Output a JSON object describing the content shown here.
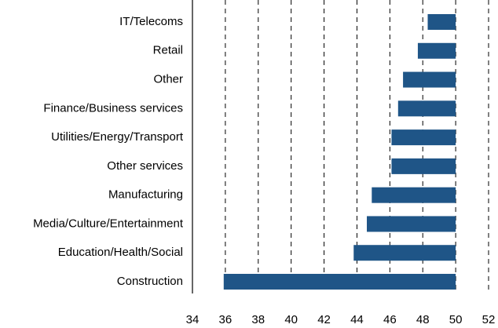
{
  "chart_data": {
    "type": "bar",
    "orientation": "horizontal",
    "categories": [
      "IT/Telecoms",
      "Retail",
      "Other",
      "Finance/Business services",
      "Utilities/Energy/Transport",
      "Other services",
      "Manufacturing",
      "Media/Culture/Entertainment",
      "Education/Health/Social",
      "Construction"
    ],
    "values": [
      48.3,
      47.7,
      46.8,
      46.5,
      46.1,
      46.1,
      44.9,
      44.6,
      43.8,
      35.9
    ],
    "color": "#1f5587",
    "bar_base": 50,
    "xlim": [
      34,
      52
    ],
    "xticks": [
      34,
      36,
      38,
      40,
      42,
      44,
      46,
      48,
      50,
      52
    ],
    "grid": true
  }
}
